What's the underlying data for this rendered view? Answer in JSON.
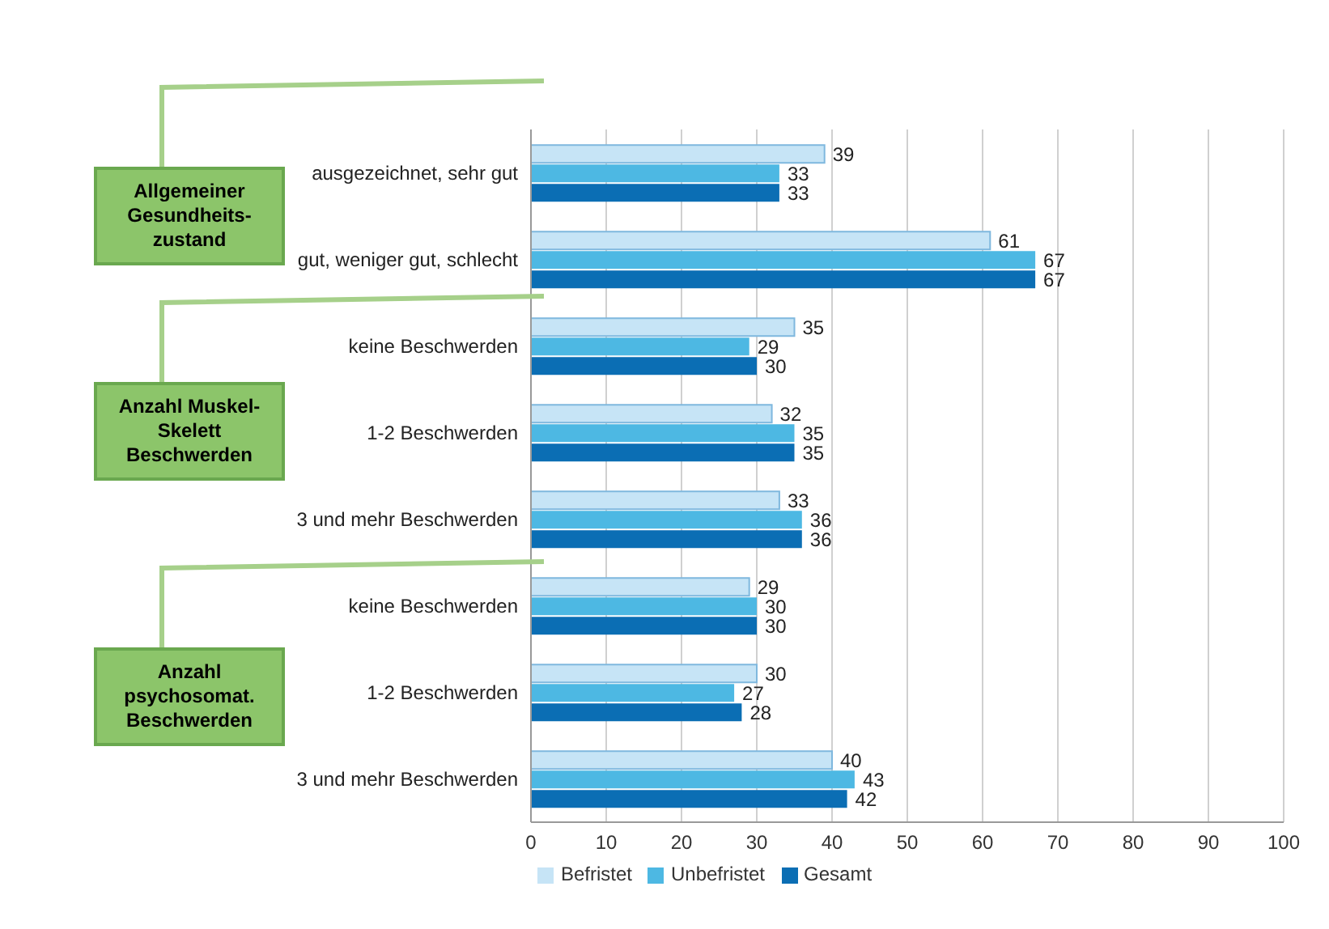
{
  "chart_data": {
    "type": "bar",
    "orientation": "horizontal",
    "categories": [
      "ausgezeichnet, sehr gut",
      "gut, weniger gut, schlecht",
      "keine Beschwerden",
      "1-2 Beschwerden",
      "3 und mehr Beschwerden",
      "keine Beschwerden",
      "1-2 Beschwerden",
      "3 und mehr Beschwerden"
    ],
    "series": [
      {
        "name": "Befristet",
        "color": "#c6e4f6",
        "values": [
          39,
          61,
          35,
          32,
          33,
          29,
          30,
          40
        ]
      },
      {
        "name": "Unbefristet",
        "color": "#4db8e3",
        "values": [
          33,
          67,
          29,
          35,
          36,
          30,
          27,
          43
        ]
      },
      {
        "name": "Gesamt",
        "color": "#0b6eb4",
        "values": [
          33,
          67,
          30,
          35,
          36,
          30,
          28,
          42
        ]
      }
    ],
    "xlim": [
      0,
      100
    ],
    "xticks": [
      0,
      10,
      20,
      30,
      40,
      50,
      60,
      70,
      80,
      90,
      100
    ],
    "grid": "x",
    "legend": "bottom",
    "data_labels": true,
    "annotations": [
      "Allgemeiner\nGesundheits-\nzustand",
      "Anzahl Muskel-\nSkelett\nBeschwerden",
      "Anzahl\npsychosomat.\nBeschwerden"
    ]
  }
}
